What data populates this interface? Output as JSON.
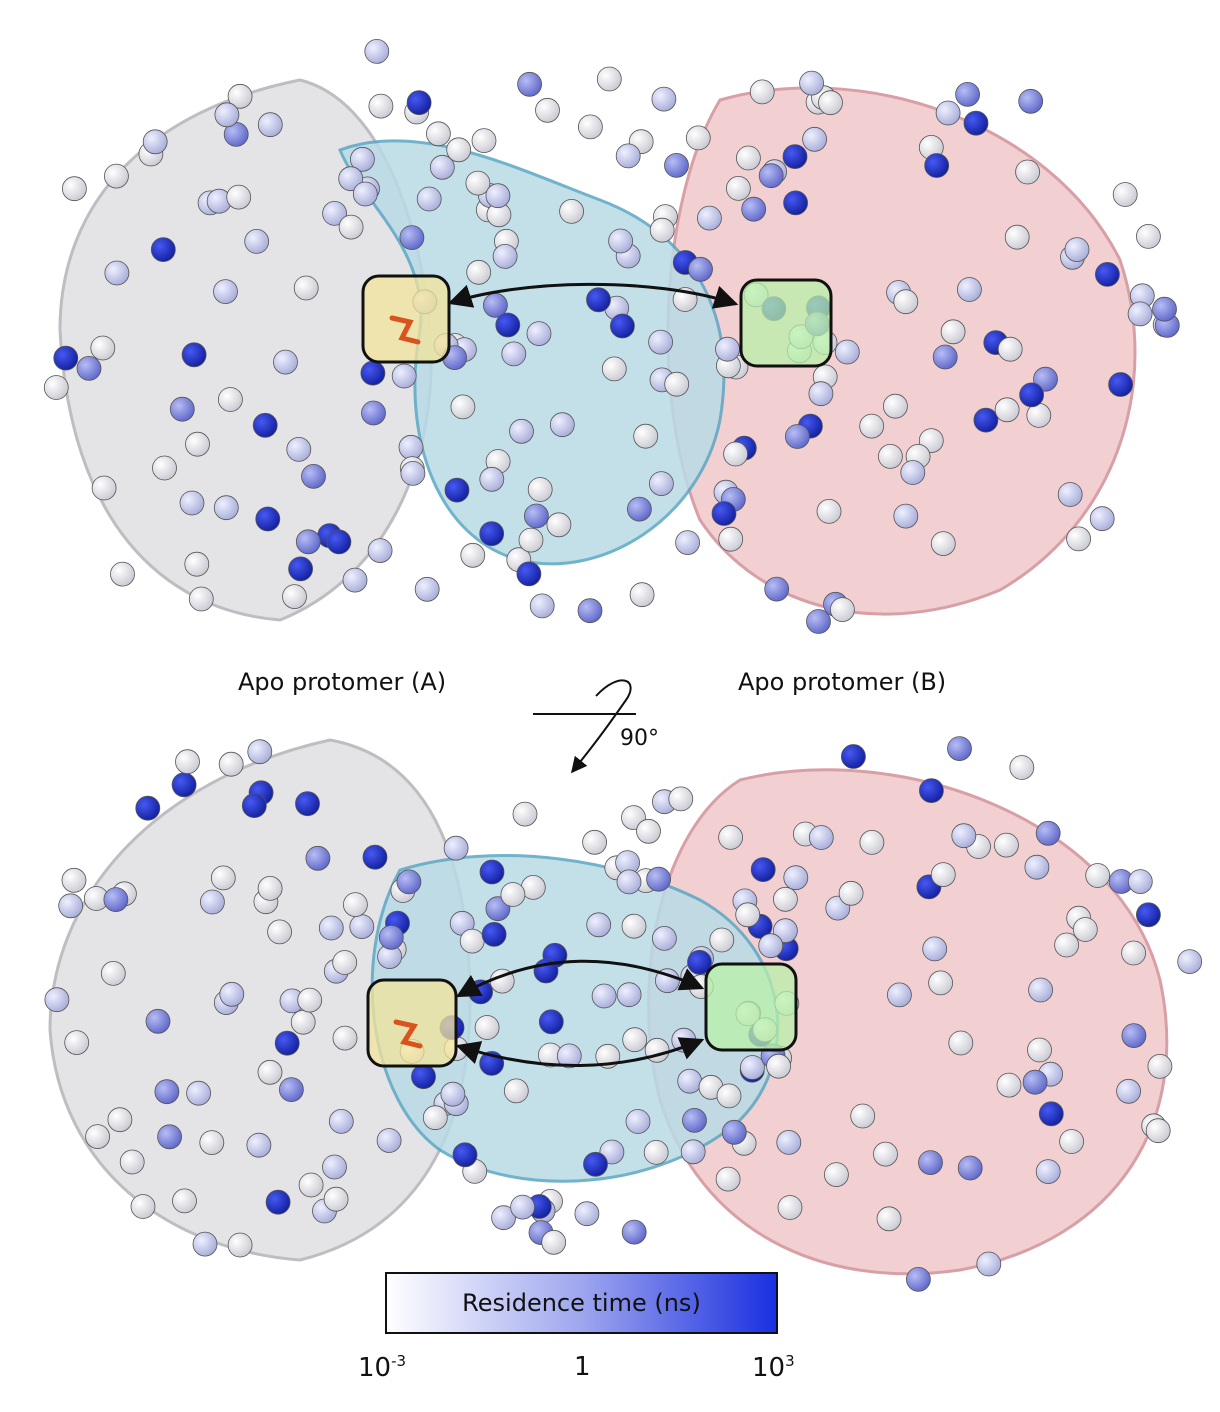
{
  "labels": {
    "protomer_a": "Apo protomer (A)",
    "protomer_b": "Apo protomer (B)",
    "rotation": "90°"
  },
  "legend": {
    "title": "Residence time (ns)",
    "min_base": "10",
    "min_exp": "-3",
    "mid": "1",
    "max_base": "10",
    "max_exp": "3",
    "color_low": "#ffffff",
    "color_high": "#1a2fe0"
  },
  "colors": {
    "protomer_a_ribbon": "#dcdcdc",
    "protomer_b_ribbon": "#e8b4b8",
    "interface_ribbon": "#5aa6c4",
    "site_a_box": "#f3e49a",
    "site_b_box": "#b8f0a8",
    "ligand": "#d9531e"
  },
  "icons": [
    "protein-ribbon-icon",
    "water-sphere-icon",
    "double-arrow-icon",
    "rotation-arrow-icon"
  ]
}
